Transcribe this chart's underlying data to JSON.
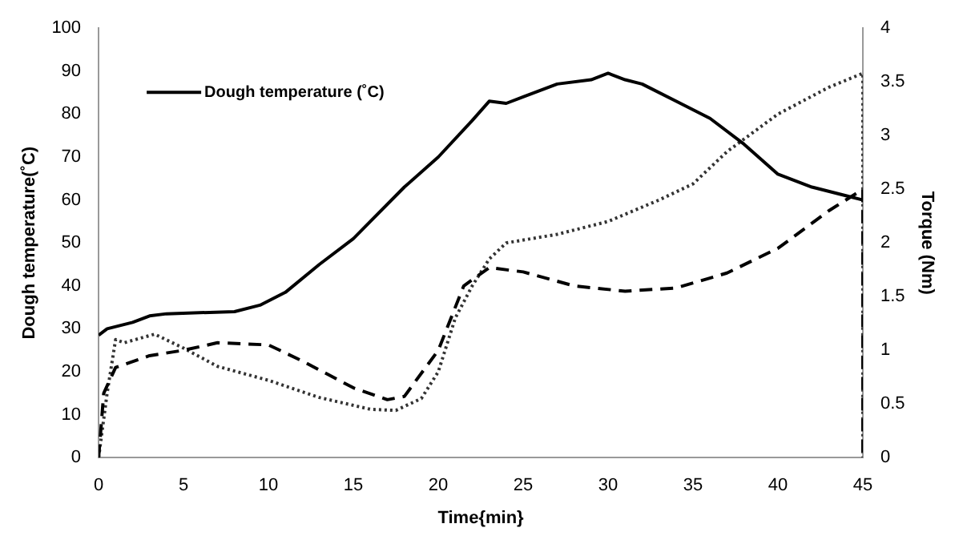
{
  "chart_data": {
    "type": "line",
    "xlabel": "Time{min}",
    "ylabel": "Dough temperature(˚C)",
    "y2label": "Torque (Nm)",
    "xlim": [
      0,
      45
    ],
    "xticks": [
      0,
      5,
      10,
      15,
      20,
      25,
      30,
      35,
      40,
      45
    ],
    "ylim": [
      0,
      100
    ],
    "yticks": [
      0,
      10,
      20,
      30,
      40,
      50,
      60,
      70,
      80,
      90,
      100
    ],
    "y2lim": [
      0,
      4
    ],
    "y2ticks": [
      0,
      0.5,
      1,
      1.5,
      2,
      2.5,
      3,
      3.5,
      4
    ],
    "grid": false,
    "legend": "top left",
    "marker": "none",
    "series": [
      {
        "name": "Dough temperature (˚C)",
        "color": "#000000",
        "line_style": "solid",
        "x": [
          0,
          0.5,
          2,
          3,
          4,
          8,
          9.5,
          11,
          13,
          15,
          16,
          18,
          20,
          22,
          23,
          24,
          25,
          27,
          29,
          30,
          31,
          32,
          34,
          36,
          38,
          40,
          42,
          44,
          45
        ],
        "values": [
          28.5,
          30,
          31.5,
          33,
          33.5,
          34,
          35.5,
          38.5,
          45,
          51,
          55,
          63,
          70,
          78.5,
          83,
          82.5,
          84,
          87,
          88,
          89.5,
          88,
          87,
          83,
          79,
          73,
          66,
          63,
          61,
          60
        ]
      },
      {
        "color": "#000000",
        "line_style": "dashed",
        "axis": "y2",
        "x": [
          0,
          0.3,
          1,
          3,
          5,
          7,
          10,
          12,
          15,
          17,
          18,
          20,
          21.5,
          23,
          25,
          28,
          31,
          34,
          37,
          40,
          43,
          45,
          45
        ],
        "values": [
          0,
          0.6,
          0.84,
          0.95,
          1.0,
          1.07,
          1.05,
          0.9,
          0.65,
          0.54,
          0.57,
          1.0,
          1.6,
          1.77,
          1.73,
          1.6,
          1.55,
          1.58,
          1.72,
          1.95,
          2.3,
          2.5,
          0
        ]
      },
      {
        "color": "#333333",
        "line_style": "dotted",
        "axis": "y2",
        "x": [
          0,
          0.5,
          1,
          1.5,
          3.3,
          5,
          7,
          10,
          13,
          16,
          17.5,
          19,
          20,
          21,
          22,
          23,
          24,
          27,
          30,
          33,
          35,
          37,
          40,
          43,
          45,
          45
        ],
        "values": [
          0,
          0.6,
          1.1,
          1.07,
          1.15,
          1.02,
          0.85,
          0.72,
          0.56,
          0.45,
          0.44,
          0.55,
          0.8,
          1.3,
          1.6,
          1.85,
          2.0,
          2.08,
          2.2,
          2.4,
          2.55,
          2.85,
          3.2,
          3.45,
          3.58,
          0
        ]
      }
    ]
  }
}
